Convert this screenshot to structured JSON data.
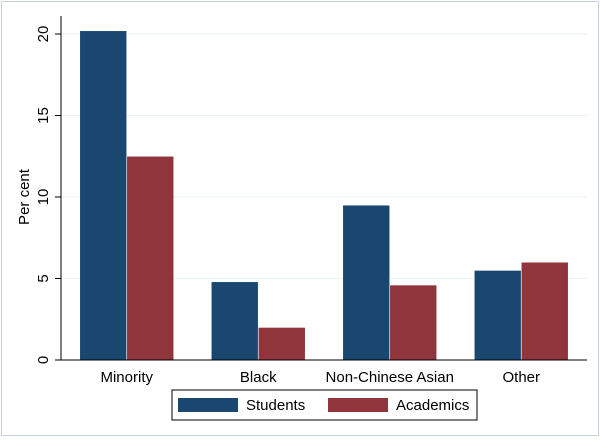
{
  "chart_data": {
    "type": "bar",
    "title": "",
    "xlabel": "",
    "ylabel": "Per cent",
    "ylim": [
      0,
      20
    ],
    "yticks": [
      0,
      5,
      10,
      15,
      20
    ],
    "grid": true,
    "legend_position": "bottom",
    "categories": [
      "Minority",
      "Black",
      "Non-Chinese Asian",
      "Other"
    ],
    "series": [
      {
        "name": "Students",
        "color": "#1a476f",
        "values": [
          20.2,
          4.8,
          9.5,
          5.5
        ]
      },
      {
        "name": "Academics",
        "color": "#90353b",
        "values": [
          12.5,
          2.0,
          4.6,
          6.0
        ]
      }
    ]
  }
}
